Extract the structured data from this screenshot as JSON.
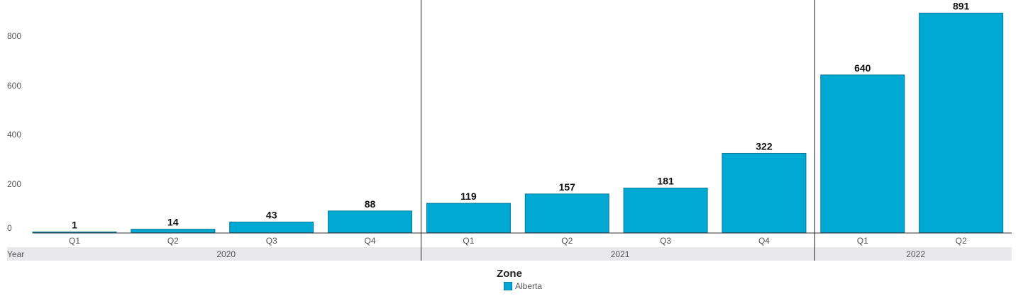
{
  "chart_data": {
    "type": "bar",
    "x_axis_label": "Year",
    "groups": [
      {
        "label": "2020",
        "categories": [
          "Q1",
          "Q2",
          "Q3",
          "Q4"
        ],
        "values": [
          1,
          14,
          43,
          88
        ]
      },
      {
        "label": "2021",
        "categories": [
          "Q1",
          "Q2",
          "Q3",
          "Q4"
        ],
        "values": [
          119,
          157,
          181,
          322
        ]
      },
      {
        "label": "2022",
        "categories": [
          "Q1",
          "Q2"
        ],
        "values": [
          640,
          891
        ]
      }
    ],
    "series": [
      {
        "name": "Alberta",
        "color": "#00a8d4"
      }
    ],
    "y_ticks": [
      0,
      200,
      400,
      600,
      800
    ],
    "ylim": [
      0,
      900
    ],
    "grid": false,
    "legend": {
      "title": "Zone",
      "placement": "bottom-center"
    }
  }
}
